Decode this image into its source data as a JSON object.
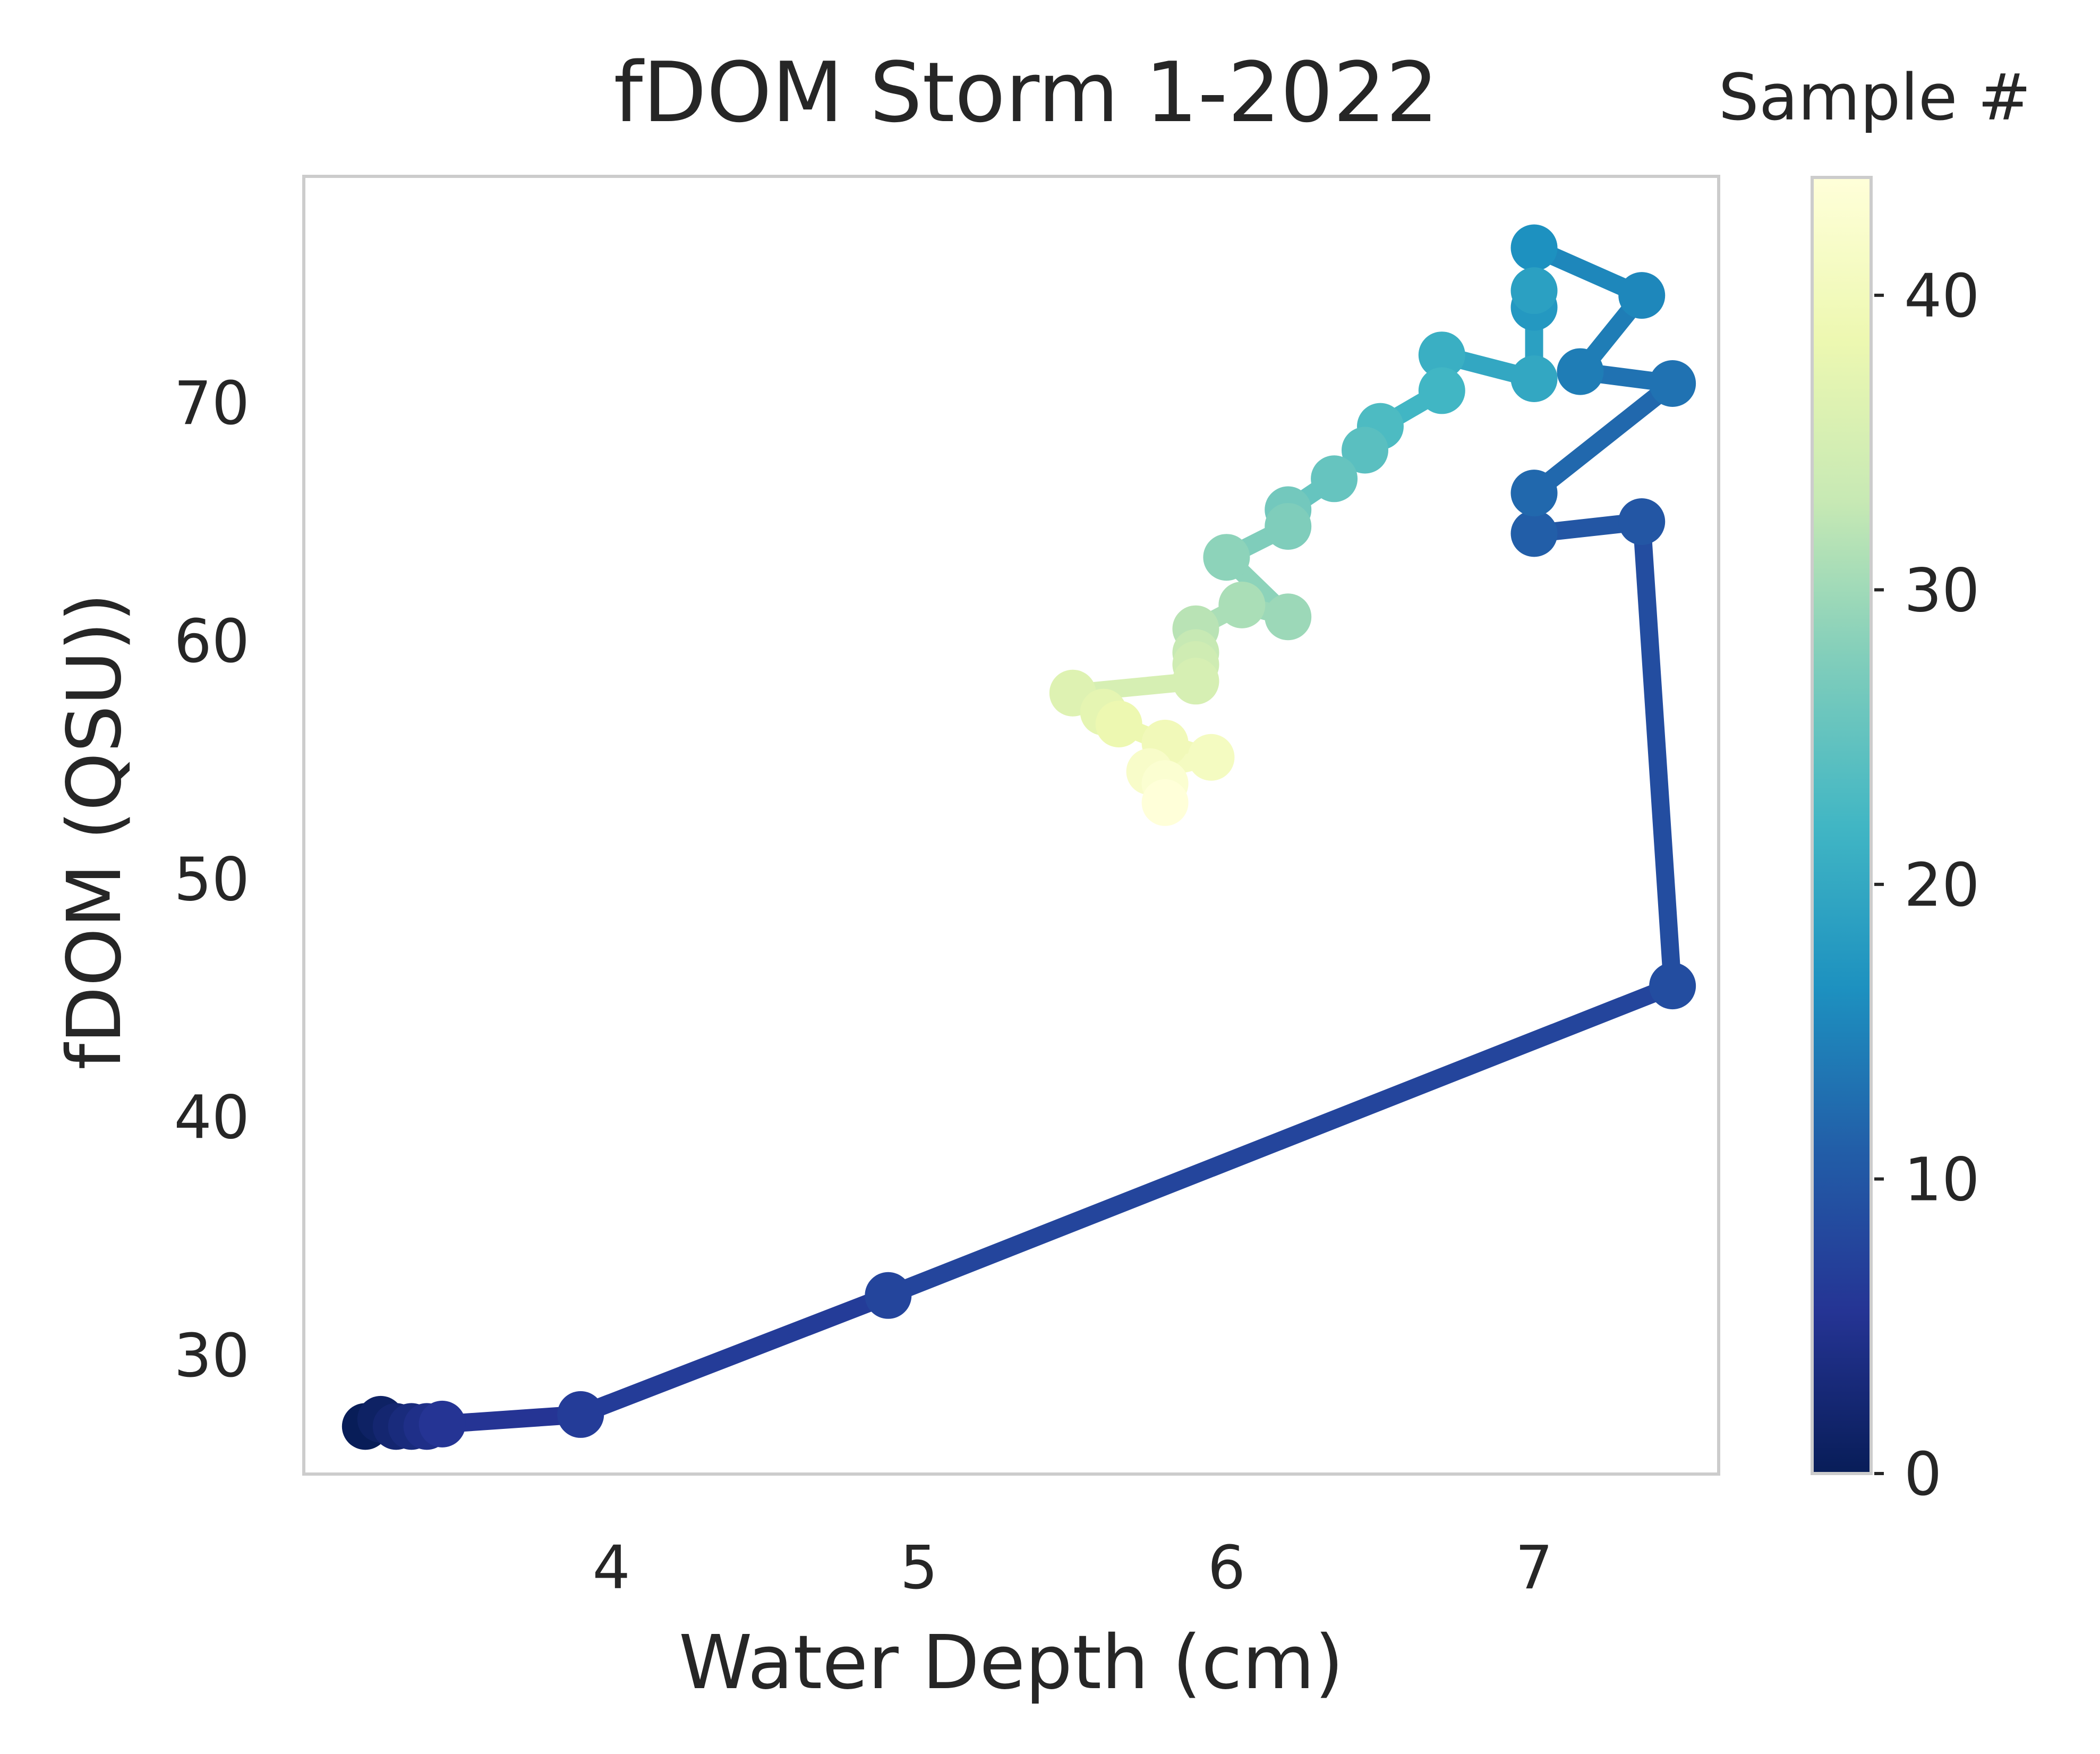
{
  "chart_data": {
    "type": "line",
    "title": "fDOM Storm 1-2022",
    "xlabel": "Water Depth (cm)",
    "ylabel": "fDOM (QSU))",
    "xlim": [
      3.0,
      7.6
    ],
    "ylim": [
      25.0,
      79.5
    ],
    "xticks": [
      4,
      5,
      6,
      7
    ],
    "yticks": [
      30,
      40,
      50,
      60,
      70
    ],
    "grid": false,
    "colorbar": {
      "label": "Sample #",
      "min": 0,
      "max": 44,
      "ticks": [
        0,
        10,
        20,
        30,
        40
      ],
      "colormap": "YlGnBu",
      "colors": [
        "#081d58",
        "#253494",
        "#225ea8",
        "#1d91c0",
        "#41b6c4",
        "#7fcdbb",
        "#c7e9b4",
        "#edf8b1",
        "#ffffd9"
      ]
    },
    "series": [
      {
        "color_by": "sample_index",
        "x": [
          3.2,
          3.25,
          3.3,
          3.35,
          3.4,
          3.45,
          3.9,
          4.9,
          7.45,
          7.35,
          7.0,
          7.0,
          7.45,
          7.15,
          7.35,
          7.0,
          7.0,
          7.0,
          7.0,
          6.7,
          6.7,
          6.5,
          6.45,
          6.35,
          6.2,
          6.2,
          6.0,
          6.2,
          6.05,
          5.9,
          5.9,
          5.9,
          5.9,
          5.5,
          5.6,
          5.65,
          5.8,
          5.95,
          5.75,
          5.8,
          5.8
        ],
        "y": [
          27.0,
          27.3,
          27.0,
          27.0,
          27.0,
          27.1,
          27.5,
          32.5,
          45.5,
          65.0,
          64.5,
          66.2,
          70.8,
          71.3,
          74.5,
          76.5,
          74.0,
          74.7,
          71.0,
          72.0,
          70.5,
          69.0,
          68.0,
          66.8,
          65.5,
          64.8,
          63.5,
          61.0,
          61.5,
          60.5,
          59.5,
          59.0,
          58.3,
          57.8,
          57.0,
          56.5,
          55.7,
          55.1,
          54.5,
          54.0,
          53.2
        ]
      }
    ]
  }
}
